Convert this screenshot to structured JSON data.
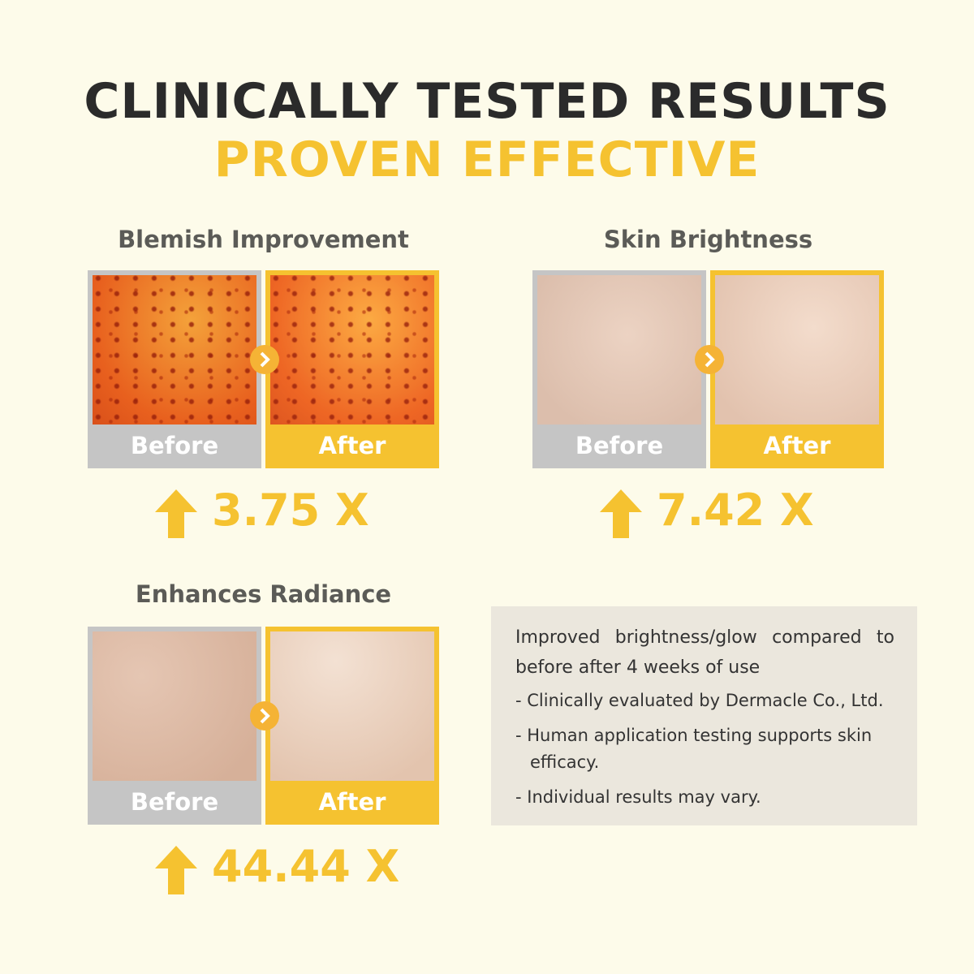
{
  "header": {
    "title": "CLINICALLY TESTED RESULTS",
    "subtitle": "PROVEN EFFECTIVE"
  },
  "results": [
    {
      "title": "Blemish Improvement",
      "before": "Before",
      "after": "After",
      "value": "3.75 X"
    },
    {
      "title": "Skin Brightness",
      "before": "Before",
      "after": "After",
      "value": "7.42 X"
    },
    {
      "title": "Enhances Radiance",
      "before": "Before",
      "after": "After",
      "value": "44.44 X"
    }
  ],
  "note": {
    "heading": "Improved brightness/glow compared to before after 4 weeks of use",
    "bullets": [
      "- Clinically evaluated by Dermacle Co., Ltd.",
      "- Human application testing supports skin efficacy.",
      "- Individual results may vary."
    ]
  }
}
